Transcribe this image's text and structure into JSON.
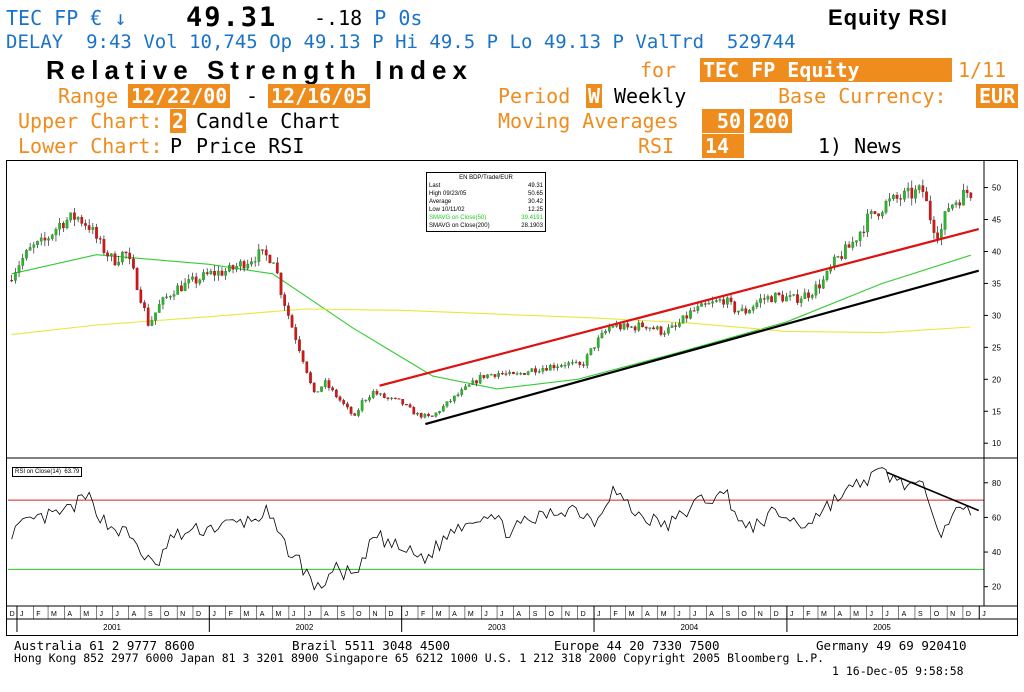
{
  "header": {
    "ticker": "TEC FP",
    "currency_symbol": "€",
    "arrow": "↓",
    "price": "49.31",
    "change": "-.18",
    "change_flag": "P",
    "change_tail": "0s",
    "function_title": "Equity RSI",
    "delay_label": "DELAY",
    "time": "9:43",
    "vol_label": "Vol",
    "volume": "10,745",
    "open_label": "Op",
    "open": "49.13 P",
    "high_label": "Hi",
    "high": "49.5 P",
    "low_label": "Lo",
    "low": "49.13 P",
    "valtrd_label": "ValTrd",
    "valtrd": "529744"
  },
  "settings": {
    "title": "Relative Strength Index",
    "for_label": "for",
    "security": "TEC  FP Equity",
    "page": "1/11",
    "range_label": "Range",
    "range_start": "12/22/00",
    "range_dash": "-",
    "range_end": "12/16/05",
    "period_label": "Period",
    "period_code": "W",
    "period_value": "Weekly",
    "base_currency_label": "Base Currency:",
    "base_currency": "EUR",
    "upper_chart_label": "Upper Chart:",
    "upper_chart_code": "2",
    "upper_chart_value": "Candle Chart",
    "moving_averages_label": "Moving Averages",
    "ma_1": "50",
    "ma_2": "200",
    "lower_chart_label": "Lower Chart:",
    "lower_chart_code": "P",
    "lower_chart_value": "Price  RSI",
    "rsi_label": "RSI",
    "rsi_period": "14",
    "news_link": "1) News"
  },
  "legend": {
    "title": "EN BDP/Trade/EUR",
    "rows": [
      {
        "label": "Last",
        "value": "49.31",
        "color": "#000000"
      },
      {
        "label": "High  09/23/05",
        "value": "50.65",
        "color": "#000000"
      },
      {
        "label": "Average",
        "value": "30.42",
        "color": "#000000"
      },
      {
        "label": "Low  10/11/02",
        "value": "12.25",
        "color": "#000000"
      },
      {
        "label": "SMAVG on Close(50)",
        "value": "39.4191",
        "color": "#22cc22"
      },
      {
        "label": "SMAVG on Close(200)",
        "value": "28.1903",
        "color": "#000000"
      }
    ]
  },
  "rsi_legend": {
    "label": "RSI on Close(14)",
    "value": "63.79"
  },
  "chart_data": [
    {
      "type": "candlestick",
      "title": "",
      "x_range": [
        "2000-12-22",
        "2005-12-16"
      ],
      "ylim": [
        8,
        54
      ],
      "y_ticks": [
        10,
        15,
        20,
        25,
        30,
        35,
        40,
        45,
        50
      ],
      "price_path": [
        [
          "2000-12-22",
          35.5
        ],
        [
          "2001-01-15",
          38.5
        ],
        [
          "2001-02-05",
          40.5
        ],
        [
          "2001-03-01",
          41.5
        ],
        [
          "2001-04-01",
          44.5
        ],
        [
          "2001-05-01",
          45.5
        ],
        [
          "2001-05-25",
          44.0
        ],
        [
          "2001-06-15",
          41.0
        ],
        [
          "2001-07-10",
          38.5
        ],
        [
          "2001-08-01",
          40.0
        ],
        [
          "2001-08-20",
          36.0
        ],
        [
          "2001-09-15",
          28.5
        ],
        [
          "2001-10-05",
          31.5
        ],
        [
          "2001-11-01",
          34.0
        ],
        [
          "2001-12-01",
          35.0
        ],
        [
          "2002-01-10",
          36.5
        ],
        [
          "2002-02-15",
          37.0
        ],
        [
          "2002-03-20",
          38.5
        ],
        [
          "2002-04-10",
          39.5
        ],
        [
          "2002-05-10",
          39.0
        ],
        [
          "2002-05-25",
          33.5
        ],
        [
          "2002-06-15",
          28.0
        ],
        [
          "2002-07-10",
          22.0
        ],
        [
          "2002-07-25",
          17.5
        ],
        [
          "2002-08-15",
          19.5
        ],
        [
          "2002-09-10",
          17.0
        ],
        [
          "2002-10-11",
          14.0
        ],
        [
          "2002-10-25",
          16.5
        ],
        [
          "2002-11-15",
          18.0
        ],
        [
          "2002-12-10",
          17.0
        ],
        [
          "2003-01-05",
          16.5
        ],
        [
          "2003-02-05",
          14.5
        ],
        [
          "2003-03-05",
          14.0
        ],
        [
          "2003-04-01",
          16.0
        ],
        [
          "2003-05-01",
          18.0
        ],
        [
          "2003-06-10",
          20.5
        ],
        [
          "2003-07-10",
          21.0
        ],
        [
          "2003-08-10",
          20.5
        ],
        [
          "2003-09-10",
          21.5
        ],
        [
          "2003-10-15",
          22.0
        ],
        [
          "2003-11-15",
          22.5
        ],
        [
          "2003-12-15",
          22.0
        ],
        [
          "2004-01-10",
          25.5
        ],
        [
          "2004-02-10",
          28.5
        ],
        [
          "2004-03-10",
          28.0
        ],
        [
          "2004-04-15",
          28.5
        ],
        [
          "2004-05-15",
          27.5
        ],
        [
          "2004-06-10",
          28.0
        ],
        [
          "2004-07-10",
          30.5
        ],
        [
          "2004-08-10",
          31.5
        ],
        [
          "2004-09-10",
          32.5
        ],
        [
          "2004-09-30",
          31.0
        ],
        [
          "2004-10-20",
          30.5
        ],
        [
          "2004-11-20",
          32.5
        ],
        [
          "2004-12-20",
          33.0
        ],
        [
          "2005-01-20",
          32.5
        ],
        [
          "2005-02-20",
          33.5
        ],
        [
          "2005-03-20",
          35.5
        ],
        [
          "2005-04-10",
          38.5
        ],
        [
          "2005-05-10",
          41.0
        ],
        [
          "2005-06-10",
          45.0
        ],
        [
          "2005-07-15",
          47.5
        ],
        [
          "2005-08-15",
          48.5
        ],
        [
          "2005-09-23",
          49.5
        ],
        [
          "2005-10-10",
          44.5
        ],
        [
          "2005-10-25",
          42.5
        ],
        [
          "2005-11-10",
          47.0
        ],
        [
          "2005-12-16",
          49.31
        ]
      ],
      "series": [
        {
          "name": "SMAVG on Close(50)",
          "color": "#33cc33",
          "points": [
            [
              "2000-12-22",
              36.5
            ],
            [
              "2001-06-01",
              39.5
            ],
            [
              "2002-01-01",
              38.0
            ],
            [
              "2002-05-01",
              36.5
            ],
            [
              "2002-10-01",
              28.0
            ],
            [
              "2003-03-01",
              20.5
            ],
            [
              "2003-07-01",
              18.5
            ],
            [
              "2003-12-01",
              20.0
            ],
            [
              "2004-06-01",
              24.0
            ],
            [
              "2005-01-01",
              29.0
            ],
            [
              "2005-07-01",
              35.0
            ],
            [
              "2005-12-16",
              39.42
            ]
          ]
        },
        {
          "name": "SMAVG on Close(200)",
          "color": "#e8e83c",
          "points": [
            [
              "2000-12-22",
              27.0
            ],
            [
              "2001-06-01",
              28.5
            ],
            [
              "2002-01-01",
              29.8
            ],
            [
              "2002-07-01",
              31.0
            ],
            [
              "2003-01-01",
              30.8
            ],
            [
              "2003-07-01",
              30.2
            ],
            [
              "2004-01-01",
              29.6
            ],
            [
              "2004-07-01",
              28.8
            ],
            [
              "2005-01-01",
              27.5
            ],
            [
              "2005-07-01",
              27.3
            ],
            [
              "2005-12-16",
              28.19
            ]
          ]
        }
      ],
      "trendlines": [
        {
          "color": "#dd1111",
          "from": [
            "2002-11-20",
            19.0
          ],
          "to": [
            "2005-12-31",
            43.5
          ]
        },
        {
          "color": "#000000",
          "from": [
            "2003-02-15",
            13.0
          ],
          "to": [
            "2005-12-31",
            37.0
          ]
        }
      ]
    },
    {
      "type": "line",
      "title": "",
      "ylim": [
        10,
        92
      ],
      "y_ticks": [
        20,
        40,
        60,
        80
      ],
      "upper_band": 70,
      "lower_band": 30,
      "series": [
        {
          "name": "RSI on Close(14)",
          "color": "#000000",
          "points": [
            [
              "2000-12-22",
              52
            ],
            [
              "2001-02-01",
              58
            ],
            [
              "2001-04-01",
              63
            ],
            [
              "2001-05-15",
              72
            ],
            [
              "2001-06-20",
              56
            ],
            [
              "2001-08-01",
              50
            ],
            [
              "2001-09-20",
              30
            ],
            [
              "2001-10-20",
              48
            ],
            [
              "2001-12-01",
              52
            ],
            [
              "2002-01-20",
              55
            ],
            [
              "2002-03-20",
              58
            ],
            [
              "2002-04-20",
              63
            ],
            [
              "2002-05-20",
              45
            ],
            [
              "2002-06-20",
              35
            ],
            [
              "2002-07-25",
              18
            ],
            [
              "2002-08-25",
              30
            ],
            [
              "2002-10-10",
              26
            ],
            [
              "2002-11-10",
              50
            ],
            [
              "2002-12-20",
              43
            ],
            [
              "2003-02-15",
              36
            ],
            [
              "2003-04-15",
              55
            ],
            [
              "2003-06-15",
              63
            ],
            [
              "2003-07-20",
              52
            ],
            [
              "2003-09-20",
              60
            ],
            [
              "2003-11-20",
              66
            ],
            [
              "2004-01-05",
              58
            ],
            [
              "2004-02-05",
              77
            ],
            [
              "2004-03-20",
              62
            ],
            [
              "2004-05-20",
              55
            ],
            [
              "2004-07-20",
              70
            ],
            [
              "2004-09-10",
              73
            ],
            [
              "2004-10-15",
              52
            ],
            [
              "2004-12-10",
              63
            ],
            [
              "2005-02-01",
              55
            ],
            [
              "2005-04-01",
              70
            ],
            [
              "2005-06-01",
              82
            ],
            [
              "2005-07-01",
              86
            ],
            [
              "2005-08-10",
              80
            ],
            [
              "2005-09-25",
              75
            ],
            [
              "2005-10-20",
              52
            ],
            [
              "2005-11-10",
              62
            ],
            [
              "2005-12-16",
              63.79
            ]
          ]
        }
      ],
      "trendlines": [
        {
          "color": "#000000",
          "from": [
            "2005-07-10",
            86
          ],
          "to": [
            "2005-12-31",
            64
          ]
        }
      ]
    }
  ],
  "x_axis": {
    "month_initials": [
      "J",
      "F",
      "M",
      "A",
      "M",
      "J",
      "J",
      "A",
      "S",
      "O",
      "N",
      "D"
    ],
    "years": [
      "2001",
      "2002",
      "2003",
      "2004",
      "2005"
    ]
  },
  "footer": {
    "line1_a": "Australia 61 2 9777 8600",
    "line1_b": "Brazil 5511 3048 4500",
    "line1_c": "Europe 44 20 7330 7500",
    "line1_d": "Germany 49 69 920410",
    "line2": "Hong Kong 852 2977 6000 Japan 81 3 3201 8900 Singapore 65 6212 1000 U.S. 1 212 318 2000 Copyright 2005 Bloomberg L.P.",
    "line3": "1 16-Dec-05  9:58:58"
  }
}
